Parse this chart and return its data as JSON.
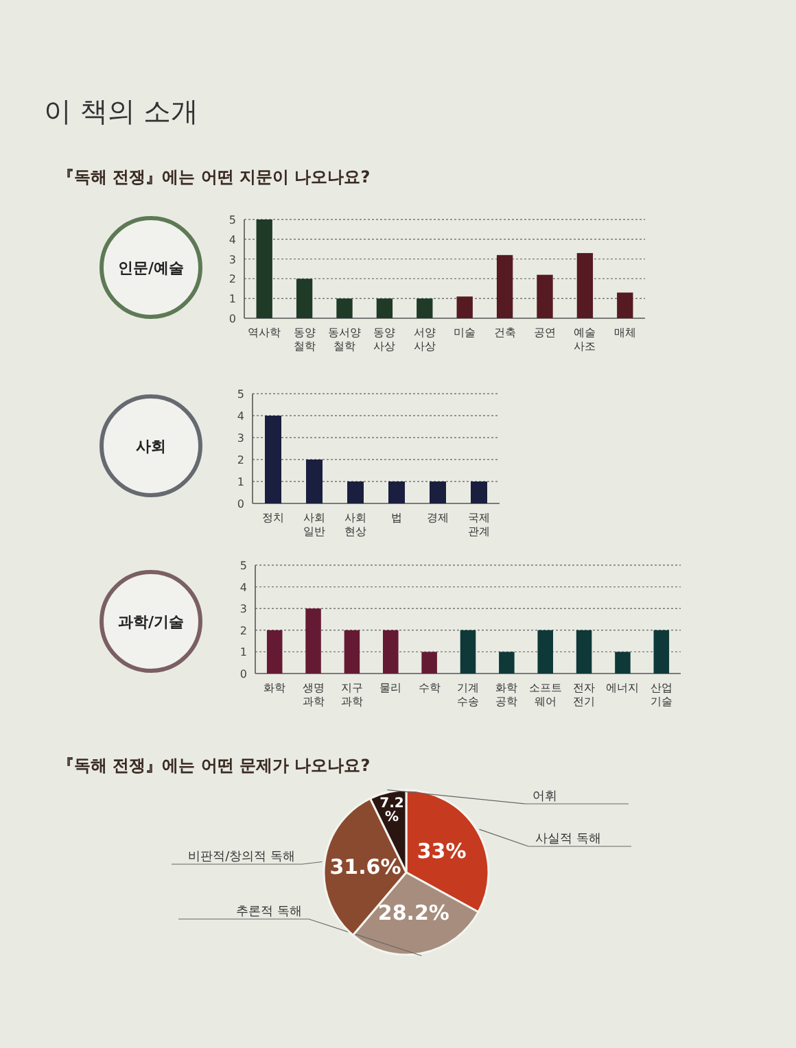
{
  "chart_data": [
    {
      "type": "bar",
      "title": "인문/예술",
      "subtitle": "『독해 전쟁』에는 어떤 지문이 나오나요?",
      "annotations": [
        "이 책의 소개"
      ],
      "categories": [
        "역사학",
        "동양\n철학",
        "동서양\n철학",
        "동양\n사상",
        "서양\n사상",
        "미술",
        "건축",
        "공연",
        "예술\n사조",
        "매체"
      ],
      "values": [
        5,
        2,
        1,
        1,
        1,
        1.1,
        3.2,
        2.2,
        3.3,
        1.3
      ],
      "colors": [
        "#1f3a27",
        "#1f3a27",
        "#1f3a27",
        "#1f3a27",
        "#1f3a27",
        "#561a22",
        "#561a22",
        "#561a22",
        "#561a22",
        "#561a22"
      ],
      "ylim": [
        0,
        5
      ],
      "yticks": [
        0,
        1,
        2,
        3,
        4,
        5
      ],
      "grid": "y"
    },
    {
      "type": "bar",
      "title": "사회",
      "categories": [
        "정치",
        "사회\n일반",
        "사회\n현상",
        "법",
        "경제",
        "국제\n관계"
      ],
      "values": [
        4,
        2,
        1,
        1,
        1,
        1
      ],
      "color": "#1a1f3f",
      "ylim": [
        0,
        5
      ],
      "yticks": [
        0,
        1,
        2,
        3,
        4,
        5
      ],
      "grid": "y"
    },
    {
      "type": "bar",
      "title": "과학/기술",
      "categories": [
        "화학",
        "생명\n과학",
        "지구\n과학",
        "물리",
        "수학",
        "기계\n수송",
        "화학\n공학",
        "소프트\n웨어",
        "전자\n전기",
        "에너지",
        "산업\n기술"
      ],
      "values": [
        2,
        3,
        2,
        2,
        1,
        2,
        1,
        2,
        2,
        1,
        2
      ],
      "colors": [
        "#651a34",
        "#651a34",
        "#651a34",
        "#651a34",
        "#651a34",
        "#0f3838",
        "#0f3838",
        "#0f3838",
        "#0f3838",
        "#0f3838",
        "#0f3838"
      ],
      "ylim": [
        0,
        5
      ],
      "yticks": [
        0,
        1,
        2,
        3,
        4,
        5
      ],
      "grid": "y"
    },
    {
      "type": "pie",
      "title": "『독해 전쟁』에는 어떤 문제가 나오나요?",
      "categories": [
        "사실적 독해",
        "추론적 독해",
        "비판적/창의적 독해",
        "어휘"
      ],
      "values": [
        33,
        28.2,
        31.6,
        7.2
      ],
      "value_labels": [
        "33%",
        "28.2%",
        "31.6%",
        "7.2\n%"
      ],
      "colors": [
        "#c63a1f",
        "#a68d7d",
        "#8a4a2f",
        "#2b1511"
      ]
    }
  ]
}
